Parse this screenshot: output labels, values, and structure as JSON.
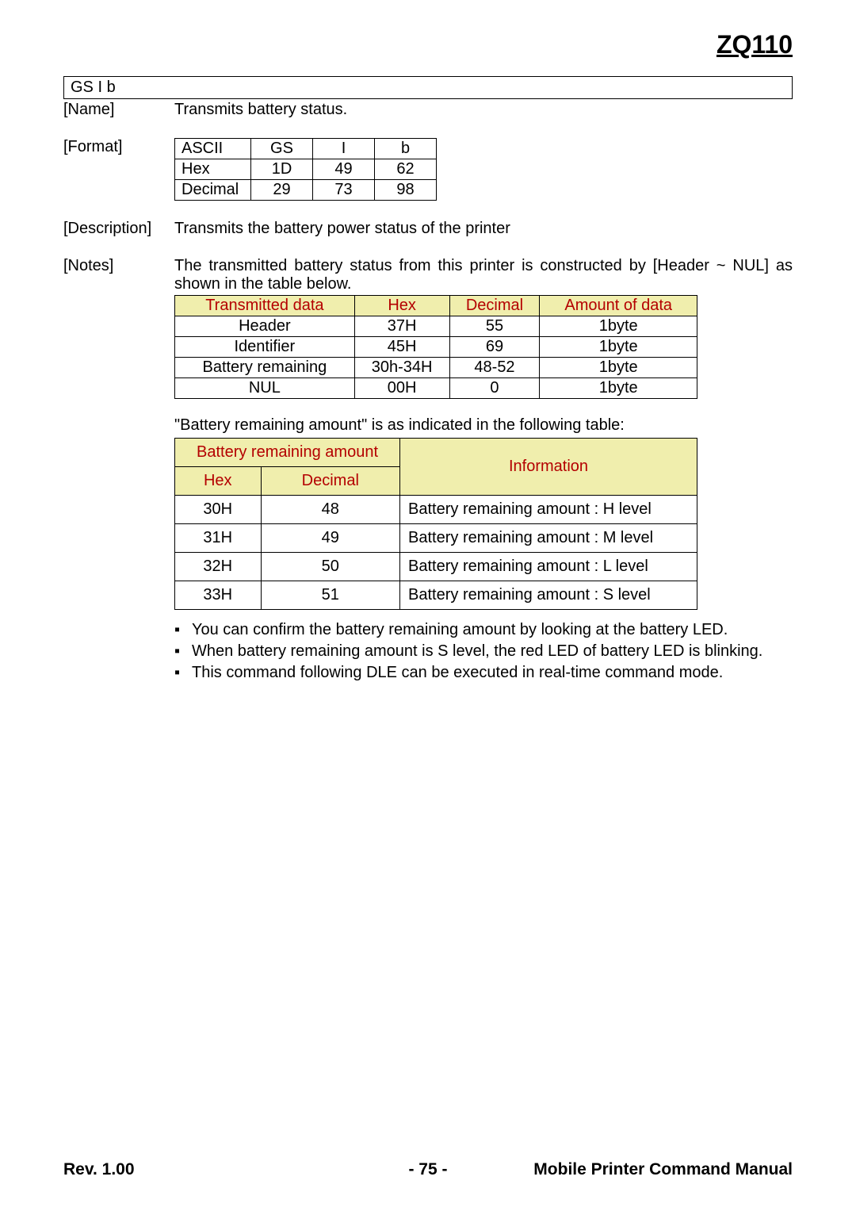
{
  "header": {
    "model": "ZQ110"
  },
  "command": {
    "title": "GS I b"
  },
  "sections": {
    "name_label": "[Name]",
    "name_value": "Transmits battery status.",
    "format_label": "[Format]",
    "format_table": {
      "rows": [
        [
          "ASCII",
          "GS",
          "I",
          "b"
        ],
        [
          "Hex",
          "1D",
          "49",
          "62"
        ],
        [
          "Decimal",
          "29",
          "73",
          "98"
        ]
      ]
    },
    "description_label": "[Description]",
    "description_value": "Transmits the battery power status of the printer",
    "notes_label": "[Notes]",
    "notes_intro": "The transmitted battery status from this printer is constructed by [Header ~ NUL] as shown in the table below.",
    "transmitted_table": {
      "headers": [
        "Transmitted data",
        "Hex",
        "Decimal",
        "Amount of data"
      ],
      "rows": [
        [
          "Header",
          "37H",
          "55",
          "1byte"
        ],
        [
          "Identifier",
          "45H",
          "69",
          "1byte"
        ],
        [
          "Battery remaining",
          "30h-34H",
          "48-52",
          "1byte"
        ],
        [
          "NUL",
          "00H",
          "0",
          "1byte"
        ]
      ],
      "header_bg": "#f0eead",
      "header_color": "#b40000"
    },
    "remaining_intro": "\"Battery remaining amount\" is as indicated in the following table:",
    "info_table": {
      "top_headers": [
        "Battery remaining amount",
        "Information"
      ],
      "sub_headers": [
        "Hex",
        "Decimal"
      ],
      "rows": [
        [
          "30H",
          "48",
          "Battery remaining amount : H level"
        ],
        [
          "31H",
          "49",
          "Battery remaining amount : M level"
        ],
        [
          "32H",
          "50",
          "Battery remaining amount : L level"
        ],
        [
          "33H",
          "51",
          "Battery remaining amount : S level"
        ]
      ],
      "header_bg": "#f0eead",
      "header_color": "#b40000"
    },
    "bullets": [
      "You can confirm the battery remaining amount by looking at the battery LED.",
      "When battery remaining amount is S level, the red LED of battery LED is blinking.",
      "This command following DLE can be executed in real-time command mode."
    ]
  },
  "footer": {
    "rev": "Rev. 1.00",
    "page": "- 75 -",
    "title": "Mobile Printer Command Manual"
  }
}
